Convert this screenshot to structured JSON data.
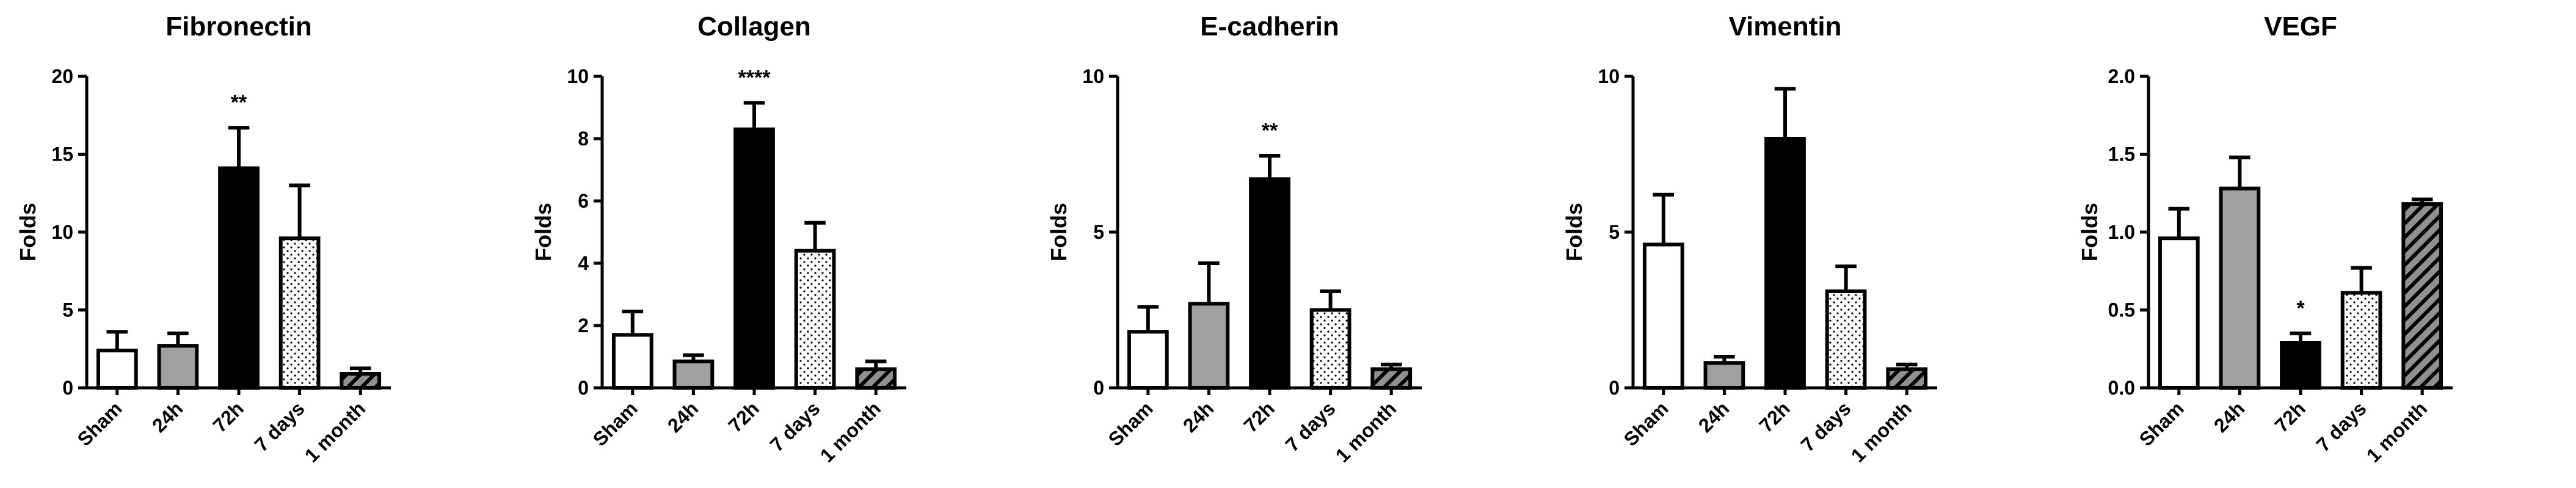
{
  "chart_data": [
    {
      "type": "bar",
      "title": "Fibronectin",
      "ylabel": "Folds",
      "categories": [
        "Sham",
        "24h",
        "72h",
        "7 days",
        "1 month"
      ],
      "values": [
        2.4,
        2.7,
        14.1,
        9.6,
        0.9
      ],
      "errors": [
        1.2,
        0.8,
        2.6,
        3.4,
        0.35
      ],
      "colors": [
        "#ffffff",
        "#a0a0a0",
        "#000000",
        "#ffffff",
        "#909090"
      ],
      "patterns": [
        "solid",
        "solid",
        "solid",
        "dots",
        "hatch"
      ],
      "ylim": [
        0,
        20
      ],
      "yticks": [
        0,
        5,
        10,
        15,
        20
      ],
      "annotations": [
        {
          "category": "72h",
          "text": "**"
        }
      ]
    },
    {
      "type": "bar",
      "title": "Collagen",
      "ylabel": "Folds",
      "categories": [
        "Sham",
        "24h",
        "72h",
        "7 days",
        "1 month"
      ],
      "values": [
        1.7,
        0.85,
        8.3,
        4.4,
        0.6
      ],
      "errors": [
        0.75,
        0.2,
        0.85,
        0.9,
        0.25
      ],
      "colors": [
        "#ffffff",
        "#a0a0a0",
        "#000000",
        "#ffffff",
        "#909090"
      ],
      "patterns": [
        "solid",
        "solid",
        "solid",
        "dots",
        "hatch"
      ],
      "ylim": [
        0,
        10
      ],
      "yticks": [
        0,
        2,
        4,
        6,
        8,
        10
      ],
      "annotations": [
        {
          "category": "72h",
          "text": "****"
        }
      ]
    },
    {
      "type": "bar",
      "title": "E-cadherin",
      "ylabel": "Folds",
      "categories": [
        "Sham",
        "24h",
        "72h",
        "7 days",
        "1 month"
      ],
      "values": [
        1.8,
        2.7,
        6.7,
        2.5,
        0.6
      ],
      "errors": [
        0.8,
        1.3,
        0.75,
        0.6,
        0.15
      ],
      "colors": [
        "#ffffff",
        "#a0a0a0",
        "#000000",
        "#ffffff",
        "#909090"
      ],
      "patterns": [
        "solid",
        "solid",
        "solid",
        "dots",
        "hatch"
      ],
      "ylim": [
        0,
        10
      ],
      "yticks": [
        0,
        5,
        10
      ],
      "annotations": [
        {
          "category": "72h",
          "text": "**"
        }
      ]
    },
    {
      "type": "bar",
      "title": "Vimentin",
      "ylabel": "Folds",
      "categories": [
        "Sham",
        "24h",
        "72h",
        "7 days",
        "1 month"
      ],
      "values": [
        4.6,
        0.8,
        8.0,
        3.1,
        0.6
      ],
      "errors": [
        1.6,
        0.2,
        1.6,
        0.8,
        0.15
      ],
      "colors": [
        "#ffffff",
        "#a0a0a0",
        "#000000",
        "#ffffff",
        "#909090"
      ],
      "patterns": [
        "solid",
        "solid",
        "solid",
        "dots",
        "hatch"
      ],
      "ylim": [
        0,
        10
      ],
      "yticks": [
        0,
        5,
        10
      ],
      "annotations": []
    },
    {
      "type": "bar",
      "title": "VEGF",
      "ylabel": "Folds",
      "categories": [
        "Sham",
        "24h",
        "72h",
        "7 days",
        "1 month"
      ],
      "values": [
        0.96,
        1.28,
        0.29,
        0.61,
        1.18
      ],
      "errors": [
        0.19,
        0.2,
        0.06,
        0.16,
        0.03
      ],
      "colors": [
        "#ffffff",
        "#a0a0a0",
        "#000000",
        "#ffffff",
        "#909090"
      ],
      "patterns": [
        "solid",
        "solid",
        "solid",
        "dots",
        "hatch"
      ],
      "ylim": [
        0,
        2
      ],
      "yticks": [
        {
          "value": 0,
          "label": "0.0"
        },
        {
          "value": 0.5,
          "label": "0.5"
        },
        {
          "value": 1,
          "label": "1.0"
        },
        {
          "value": 1.5,
          "label": "1.5"
        },
        {
          "value": 2,
          "label": "2.0"
        }
      ],
      "annotations": [
        {
          "category": "72h",
          "text": "*"
        }
      ]
    }
  ]
}
